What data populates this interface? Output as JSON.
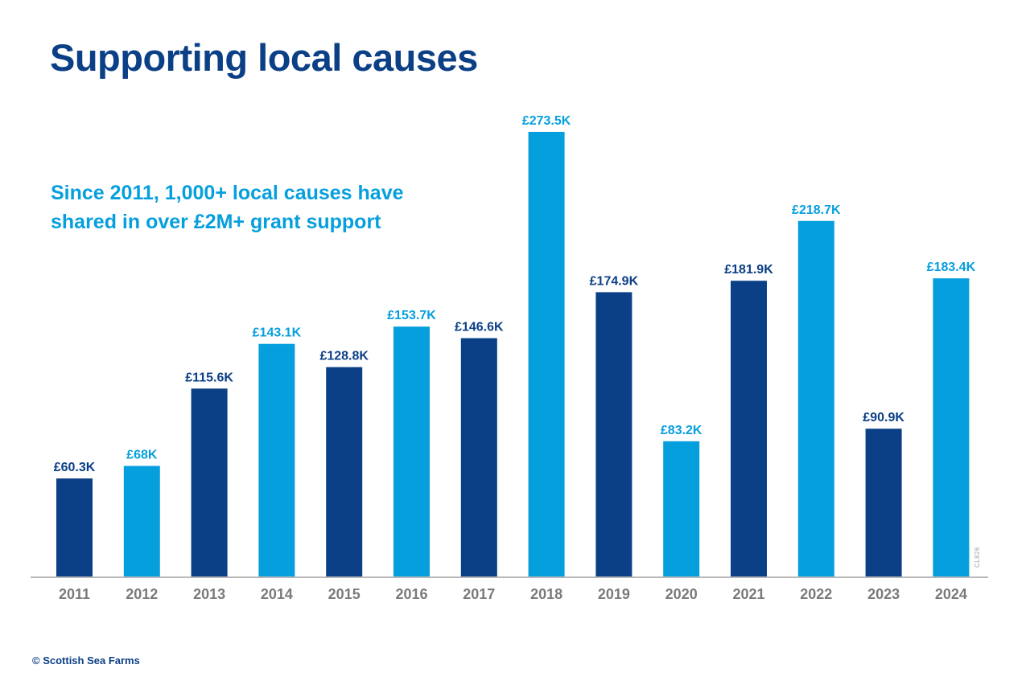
{
  "title": "Supporting local causes",
  "subtitle": {
    "line1": "Since 2011, 1,000+ local causes have",
    "line2": "shared in over £2M+ grant support"
  },
  "footer": "© Scottish Sea Farms",
  "code": "CL826",
  "colors": {
    "dark": "#0b3f86",
    "light": "#069fde",
    "axis": "#b8b8b8",
    "year": "#7a7a7a"
  },
  "chart_data": {
    "type": "bar",
    "title": "Supporting local causes",
    "xlabel": "",
    "ylabel": "",
    "categories": [
      "2011",
      "2012",
      "2013",
      "2014",
      "2015",
      "2016",
      "2017",
      "2018",
      "2019",
      "2020",
      "2021",
      "2022",
      "2023",
      "2024"
    ],
    "values": [
      60.3,
      68,
      115.6,
      143.1,
      128.8,
      153.7,
      146.6,
      273.5,
      174.9,
      83.2,
      181.9,
      218.7,
      90.9,
      183.4
    ],
    "value_labels": [
      "£60.3K",
      "£68K",
      "£115.6K",
      "£143.1K",
      "£128.8K",
      "£153.7K",
      "£146.6K",
      "£273.5K",
      "£174.9K",
      "£83.2K",
      "£181.9K",
      "£218.7K",
      "£90.9K",
      "£183.4K"
    ],
    "bar_colors": [
      "dark",
      "light",
      "dark",
      "light",
      "dark",
      "light",
      "dark",
      "light",
      "dark",
      "light",
      "dark",
      "light",
      "dark",
      "light"
    ],
    "units": "£ thousands",
    "ylim": [
      0,
      273.5
    ],
    "grid": false,
    "legend": "none"
  }
}
